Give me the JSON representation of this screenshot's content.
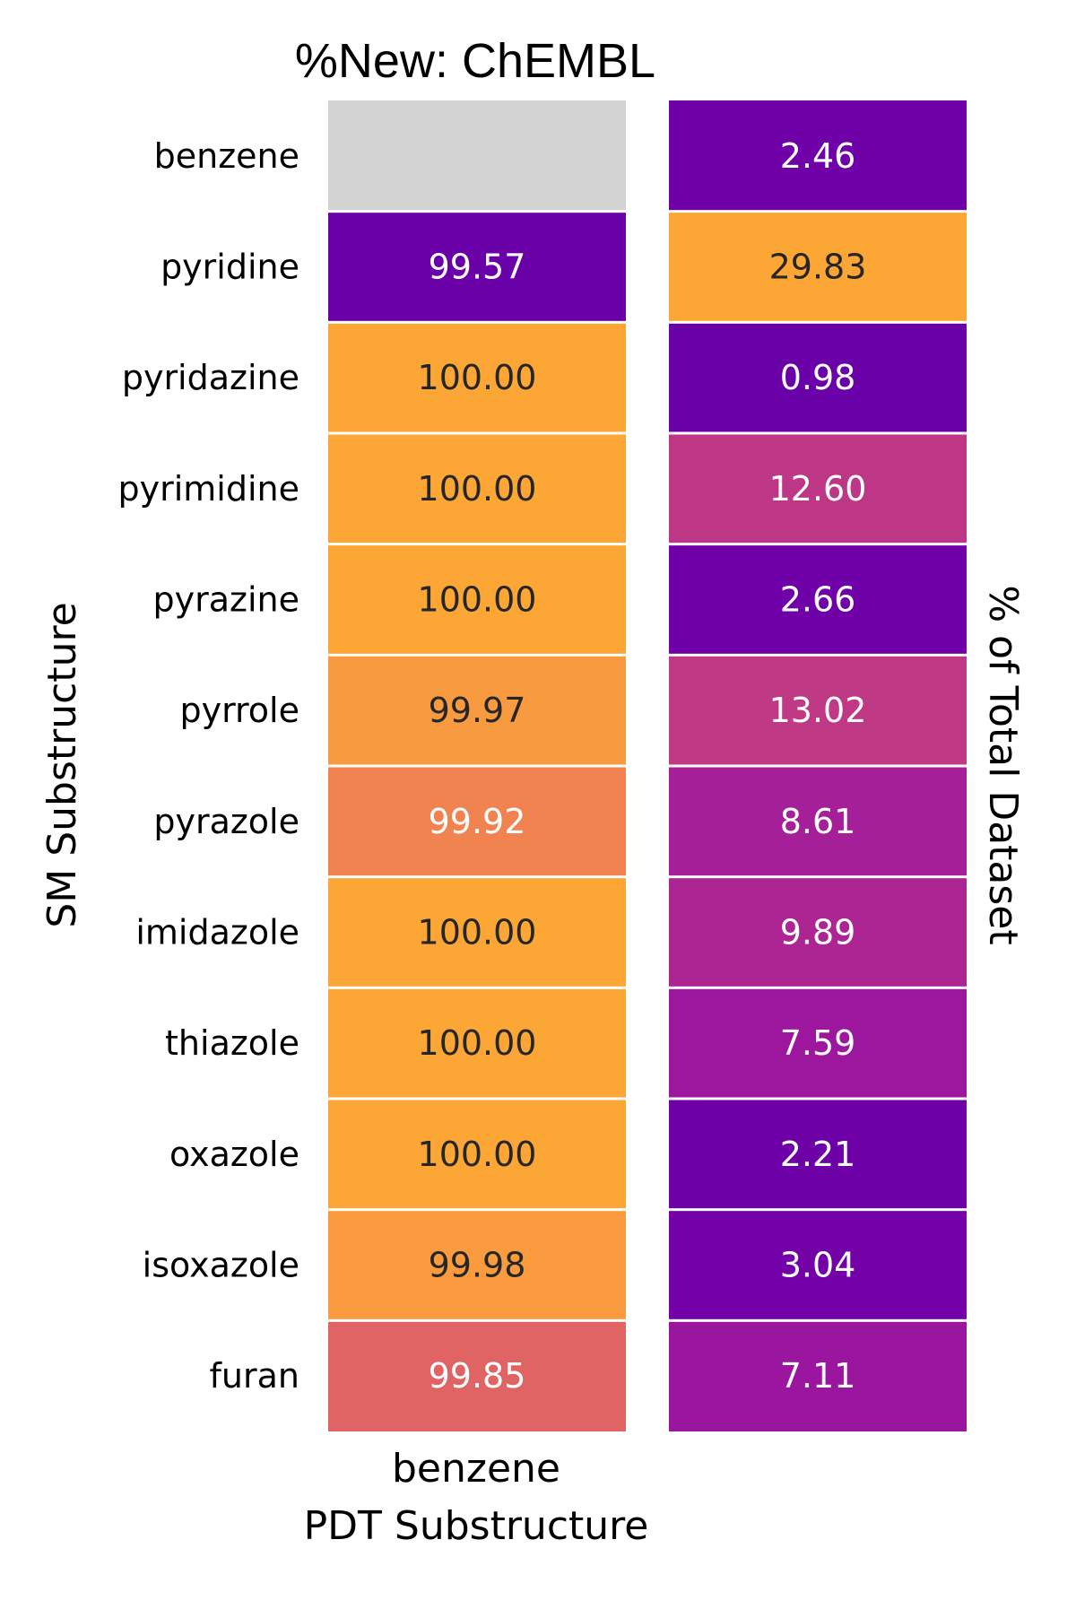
{
  "chart_data": {
    "type": "heatmap",
    "title": "%New: ChEMBL",
    "ylabel": "SM Substructure",
    "xlabel": "PDT Substructure",
    "x_tick_labels": [
      "benzene"
    ],
    "right_label": "% of Total Dataset",
    "rows": [
      "benzene",
      "pyridine",
      "pyridazine",
      "pyrimidine",
      "pyrazine",
      "pyrrole",
      "pyrazole",
      "imidazole",
      "thiazole",
      "oxazole",
      "isoxazole",
      "furan"
    ],
    "series": [
      {
        "values": [
          null,
          99.57,
          100.0,
          100.0,
          100.0,
          99.97,
          99.92,
          100.0,
          100.0,
          100.0,
          99.98,
          99.85
        ],
        "labels": [
          "",
          "99.57",
          "100.00",
          "100.00",
          "100.00",
          "99.97",
          "99.92",
          "100.00",
          "100.00",
          "100.00",
          "99.98",
          "99.85"
        ],
        "colors": [
          "#d3d3d3",
          "#6a00a8",
          "#fca636",
          "#fca636",
          "#fca636",
          "#f89a40",
          "#f0834f",
          "#fca636",
          "#fca636",
          "#fca636",
          "#f99b3e",
          "#e06464"
        ],
        "text_colors": [
          "#262626",
          "#ffffff",
          "#262626",
          "#262626",
          "#262626",
          "#262626",
          "#ffffff",
          "#262626",
          "#262626",
          "#262626",
          "#262626",
          "#ffffff"
        ]
      },
      {
        "values": [
          2.46,
          29.83,
          0.98,
          12.6,
          2.66,
          13.02,
          8.61,
          9.89,
          7.59,
          2.21,
          3.04,
          7.11
        ],
        "labels": [
          "2.46",
          "29.83",
          "0.98",
          "12.60",
          "2.66",
          "13.02",
          "8.61",
          "9.89",
          "7.59",
          "2.21",
          "3.04",
          "7.11"
        ],
        "colors": [
          "#7000a8",
          "#fca636",
          "#6a00a8",
          "#bd3786",
          "#7000a8",
          "#bf3984",
          "#a51f99",
          "#ac2593",
          "#9c179e",
          "#6e00a8",
          "#7401a8",
          "#9a169f"
        ],
        "text_colors": [
          "#ffffff",
          "#262626",
          "#ffffff",
          "#ffffff",
          "#ffffff",
          "#ffffff",
          "#ffffff",
          "#ffffff",
          "#ffffff",
          "#ffffff",
          "#ffffff",
          "#ffffff"
        ]
      }
    ]
  }
}
